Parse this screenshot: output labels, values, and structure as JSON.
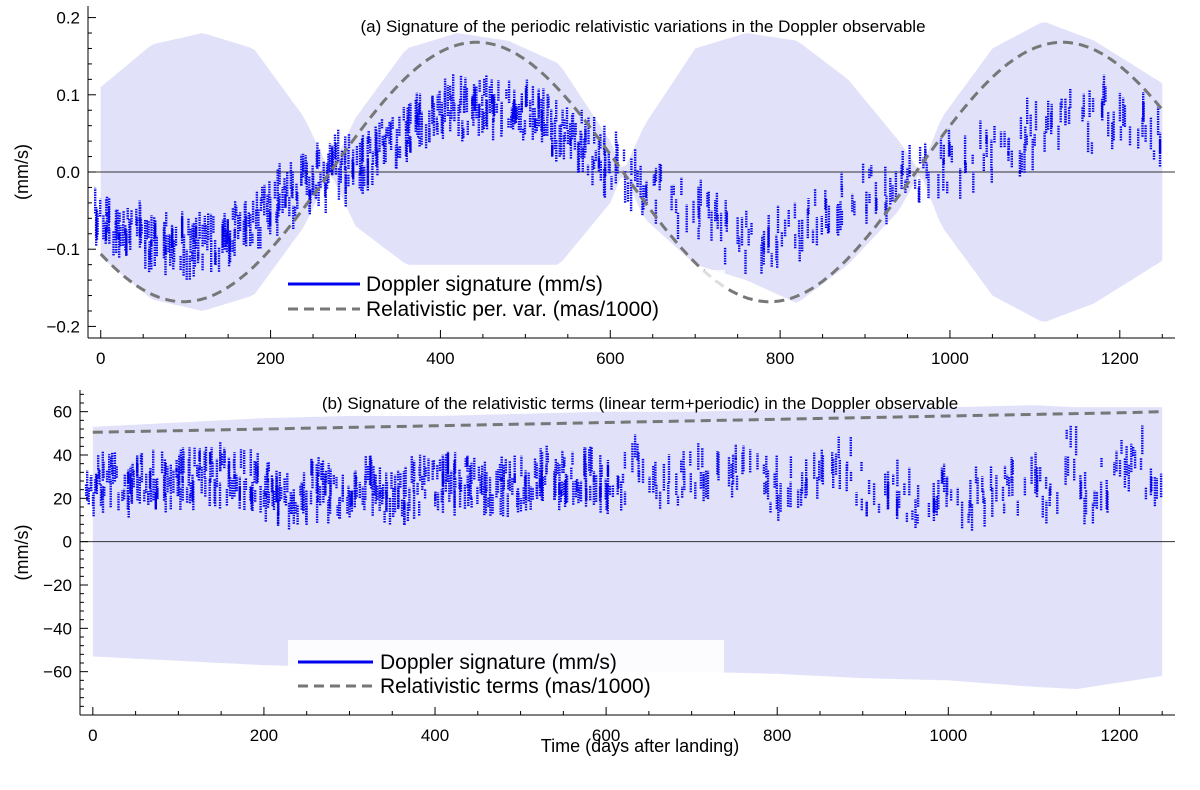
{
  "chart_data": [
    {
      "type": "line",
      "panel": "a",
      "title": "(a) Signature of the periodic relativistic variations in the Doppler observable",
      "xlabel": "",
      "ylabel": "(mm/s)",
      "xlim": [
        -15,
        1265
      ],
      "ylim": [
        -0.215,
        0.215
      ],
      "xticks": [
        0,
        200,
        400,
        600,
        800,
        1000,
        1200
      ],
      "yticks": [
        -0.2,
        -0.1,
        0.0,
        0.1,
        0.2
      ],
      "ytick_labels": [
        "−0.2",
        "−0.1",
        "0.0",
        "0.1",
        "0.2"
      ],
      "zero_line": true,
      "legend": [
        "Doppler signature (mm/s)",
        "Relativistic per. var. (mas/1000)"
      ],
      "band": {
        "name": "uncertainty envelope",
        "color": "#e1e1fa",
        "x": [
          0,
          60,
          120,
          180,
          240,
          270,
          300,
          360,
          420,
          480,
          540,
          600,
          615,
          640,
          700,
          760,
          820,
          880,
          940,
          965,
          990,
          1050,
          1110,
          1170,
          1250
        ],
        "upper": [
          0.11,
          0.165,
          0.18,
          0.16,
          0.07,
          0.0,
          0.07,
          0.16,
          0.18,
          0.17,
          0.14,
          0.04,
          0.0,
          0.06,
          0.16,
          0.18,
          0.17,
          0.12,
          0.04,
          0.0,
          0.07,
          0.16,
          0.195,
          0.17,
          0.115
        ],
        "lower": [
          -0.11,
          -0.165,
          -0.18,
          -0.16,
          -0.07,
          0.0,
          -0.07,
          -0.12,
          -0.12,
          -0.12,
          -0.12,
          -0.04,
          0.0,
          -0.06,
          -0.12,
          -0.14,
          -0.17,
          -0.12,
          -0.05,
          0.0,
          -0.07,
          -0.16,
          -0.195,
          -0.17,
          -0.115
        ]
      },
      "series": [
        {
          "name": "Relativistic per. var. (mas/1000)",
          "style": "dashed",
          "color": "#777777",
          "model": "sinusoid",
          "amplitude": 0.168,
          "zero_crossings": [
            270,
            615,
            962
          ],
          "first_extremum": -0.168,
          "x_range": [
            0,
            1250
          ]
        },
        {
          "name": "Doppler signature (mm/s)",
          "style": "data-bars",
          "color": "#0000ee",
          "x": [
            0,
            20,
            40,
            60,
            80,
            100,
            120,
            140,
            160,
            180,
            200,
            220,
            240,
            260,
            280,
            300,
            320,
            340,
            360,
            380,
            400,
            420,
            440,
            460,
            480,
            500,
            520,
            540,
            560,
            580,
            600,
            620,
            640,
            660,
            680,
            700,
            720,
            740,
            760,
            780,
            800,
            820,
            840,
            860,
            880,
            900,
            920,
            940,
            960,
            980,
            1000,
            1020,
            1040,
            1060,
            1080,
            1100,
            1120,
            1140,
            1160,
            1180,
            1200,
            1220,
            1240
          ],
          "values": [
            -0.06,
            -0.07,
            -0.08,
            -0.085,
            -0.09,
            -0.095,
            -0.09,
            -0.085,
            -0.075,
            -0.06,
            -0.045,
            -0.03,
            -0.015,
            -0.005,
            0.005,
            0.015,
            0.025,
            0.04,
            0.055,
            0.065,
            0.075,
            0.08,
            0.085,
            0.085,
            0.08,
            0.075,
            0.065,
            0.055,
            0.045,
            0.03,
            0.015,
            -0.005,
            -0.02,
            -0.03,
            -0.04,
            -0.05,
            -0.06,
            -0.08,
            -0.09,
            -0.1,
            -0.085,
            -0.075,
            -0.06,
            -0.05,
            -0.035,
            -0.025,
            -0.02,
            -0.015,
            -0.005,
            0.005,
            0.01,
            0.015,
            0.02,
            0.03,
            0.04,
            0.05,
            0.06,
            0.09,
            0.06,
            0.08,
            0.07,
            0.06,
            0.05
          ]
        }
      ]
    },
    {
      "type": "line",
      "panel": "b",
      "title": "(b) Signature of the relativistic terms (linear term+periodic) in the Doppler observable",
      "xlabel": "Time (days after landing)",
      "ylabel": "(mm/s)",
      "xlim": [
        -15,
        1265
      ],
      "ylim": [
        -80,
        70
      ],
      "xticks": [
        0,
        200,
        400,
        600,
        800,
        1000,
        1200
      ],
      "yticks": [
        -60,
        -40,
        -20,
        0,
        20,
        40,
        60
      ],
      "ytick_labels": [
        "−60",
        "−40",
        "−20",
        "0",
        "20",
        "40",
        "60"
      ],
      "zero_line": true,
      "legend": [
        "Doppler signature (mm/s)",
        "Relativistic terms (mas/1000)"
      ],
      "band": {
        "name": "uncertainty envelope",
        "color": "#e1e1fa",
        "x": [
          0,
          100,
          200,
          300,
          400,
          500,
          600,
          700,
          800,
          900,
          1000,
          1100,
          1150,
          1200,
          1250
        ],
        "upper": [
          53,
          55,
          57,
          58,
          58,
          59,
          60,
          60,
          61,
          61,
          62,
          63,
          62,
          62,
          62
        ],
        "lower": [
          -53,
          -55,
          -57,
          -58,
          -58,
          -59,
          -60,
          -60,
          -61,
          -63,
          -64,
          -67,
          -68,
          -65,
          -62
        ]
      },
      "series": [
        {
          "name": "Relativistic terms (mas/1000)",
          "style": "dashed",
          "color": "#777777",
          "x": [
            0,
            200,
            400,
            600,
            800,
            1000,
            1200,
            1250
          ],
          "values": [
            50.5,
            52,
            53.5,
            55,
            56.5,
            58,
            59.5,
            60
          ]
        },
        {
          "name": "Doppler signature (mm/s)",
          "style": "data-bars",
          "color": "#0000ee",
          "x": [
            0,
            20,
            40,
            60,
            80,
            100,
            120,
            140,
            160,
            180,
            200,
            220,
            240,
            260,
            280,
            300,
            320,
            340,
            360,
            380,
            400,
            420,
            440,
            460,
            480,
            500,
            520,
            540,
            560,
            580,
            600,
            620,
            640,
            660,
            680,
            700,
            720,
            740,
            760,
            780,
            800,
            820,
            840,
            860,
            880,
            900,
            920,
            940,
            960,
            980,
            1000,
            1020,
            1040,
            1060,
            1080,
            1100,
            1120,
            1140,
            1160,
            1180,
            1200,
            1220,
            1240
          ],
          "values": [
            27,
            28,
            26,
            29,
            27,
            28,
            30,
            31,
            30,
            29,
            25,
            18,
            20,
            25,
            22,
            20,
            24,
            20,
            22,
            25,
            26,
            27,
            28,
            27,
            25,
            26,
            28,
            30,
            29,
            30,
            27,
            30,
            35,
            24,
            25,
            32,
            30,
            33,
            35,
            30,
            25,
            28,
            30,
            32,
            34,
            25,
            20,
            22,
            18,
            20,
            22,
            20,
            23,
            22,
            25,
            28,
            20,
            40,
            22,
            28,
            40,
            38,
            30
          ]
        }
      ]
    }
  ]
}
